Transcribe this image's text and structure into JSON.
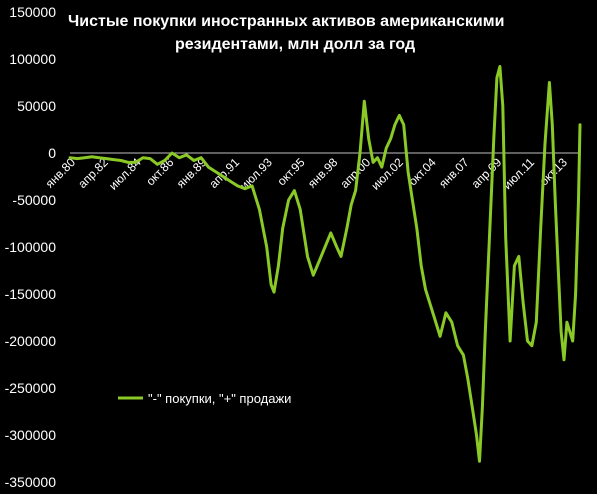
{
  "chart_data": {
    "type": "line",
    "title_line1": "Чистые покупки иностранных активов американскими",
    "title_line2": "резидентами, млн долл за год",
    "ylim": [
      -350000,
      150000
    ],
    "y_ticks": [
      "150000",
      "100000",
      "50000",
      "0",
      "-50000",
      "-100000",
      "-150000",
      "-200000",
      "-250000",
      "-300000",
      "-350000"
    ],
    "x_tick_labels": [
      "янв.80",
      "апр.82",
      "июл.84",
      "окт.86",
      "янв.89",
      "апр.91",
      "июл.93",
      "окт.95",
      "янв.98",
      "апр.00",
      "июл.02",
      "окт.04",
      "янв.07",
      "апр.09",
      "июл.11",
      "окт.13"
    ],
    "x_tick_years": [
      1980.0,
      1982.25,
      1984.5,
      1986.75,
      1989.0,
      1991.25,
      1993.5,
      1995.75,
      1998.0,
      2000.25,
      2002.5,
      2004.75,
      2007.0,
      2009.25,
      2011.5,
      2013.75
    ],
    "x_range_years": [
      1980.0,
      2015.0
    ],
    "grid": false,
    "legend": "bottom-left",
    "line_color": "#8ac926",
    "series": [
      {
        "name": "\"-\" покупки, \"+\" продажи",
        "x": [
          1980.0,
          1980.5,
          1981.0,
          1981.5,
          1982.0,
          1982.5,
          1983.0,
          1983.5,
          1984.0,
          1984.5,
          1985.0,
          1985.5,
          1986.0,
          1986.5,
          1987.0,
          1987.5,
          1988.0,
          1988.5,
          1989.0,
          1989.5,
          1990.0,
          1990.5,
          1991.0,
          1991.5,
          1992.0,
          1992.5,
          1993.0,
          1993.5,
          1993.8,
          1994.0,
          1994.3,
          1994.6,
          1995.0,
          1995.4,
          1995.8,
          1996.3,
          1996.7,
          1997.1,
          1997.5,
          1997.9,
          1998.3,
          1998.6,
          1999.0,
          1999.3,
          1999.6,
          1999.9,
          2000.2,
          2000.5,
          2000.8,
          2001.1,
          2001.4,
          2001.7,
          2002.0,
          2002.3,
          2002.6,
          2002.9,
          2003.2,
          2003.5,
          2003.8,
          2004.1,
          2004.4,
          2004.7,
          2005.0,
          2005.4,
          2005.8,
          2006.2,
          2006.6,
          2007.0,
          2007.3,
          2007.6,
          2007.9,
          2008.1,
          2008.3,
          2008.5,
          2008.7,
          2008.9,
          2009.1,
          2009.3,
          2009.5,
          2009.7,
          2009.9,
          2010.2,
          2010.5,
          2010.8,
          2011.1,
          2011.4,
          2011.7,
          2012.0,
          2012.3,
          2012.6,
          2012.9,
          2013.1,
          2013.3,
          2013.5,
          2013.7,
          2013.9,
          2014.1,
          2014.3,
          2014.5,
          2014.7,
          2014.9,
          2015.0
        ],
        "values": [
          -5000,
          -6000,
          -5000,
          -4000,
          -5000,
          -6000,
          -7000,
          -8000,
          -10000,
          -10000,
          -5000,
          -6000,
          -12000,
          -8000,
          0,
          -5000,
          -2000,
          -8000,
          -5000,
          -15000,
          -20000,
          -25000,
          -30000,
          -35000,
          -38000,
          -35000,
          -60000,
          -100000,
          -140000,
          -148000,
          -120000,
          -80000,
          -50000,
          -40000,
          -60000,
          -110000,
          -130000,
          -115000,
          -100000,
          -85000,
          -100000,
          -110000,
          -80000,
          -55000,
          -40000,
          0,
          55000,
          15000,
          -10000,
          -5000,
          -15000,
          5000,
          15000,
          30000,
          40000,
          30000,
          -20000,
          -50000,
          -80000,
          -120000,
          -145000,
          -160000,
          -175000,
          -195000,
          -170000,
          -180000,
          -205000,
          -215000,
          -240000,
          -270000,
          -300000,
          -328000,
          -270000,
          -190000,
          -120000,
          -50000,
          20000,
          80000,
          92000,
          50000,
          -90000,
          -200000,
          -120000,
          -110000,
          -160000,
          -200000,
          -205000,
          -180000,
          -80000,
          10000,
          75000,
          30000,
          -50000,
          -120000,
          -190000,
          -220000,
          -180000,
          -190000,
          -200000,
          -150000,
          -50000,
          30000
        ]
      }
    ]
  }
}
